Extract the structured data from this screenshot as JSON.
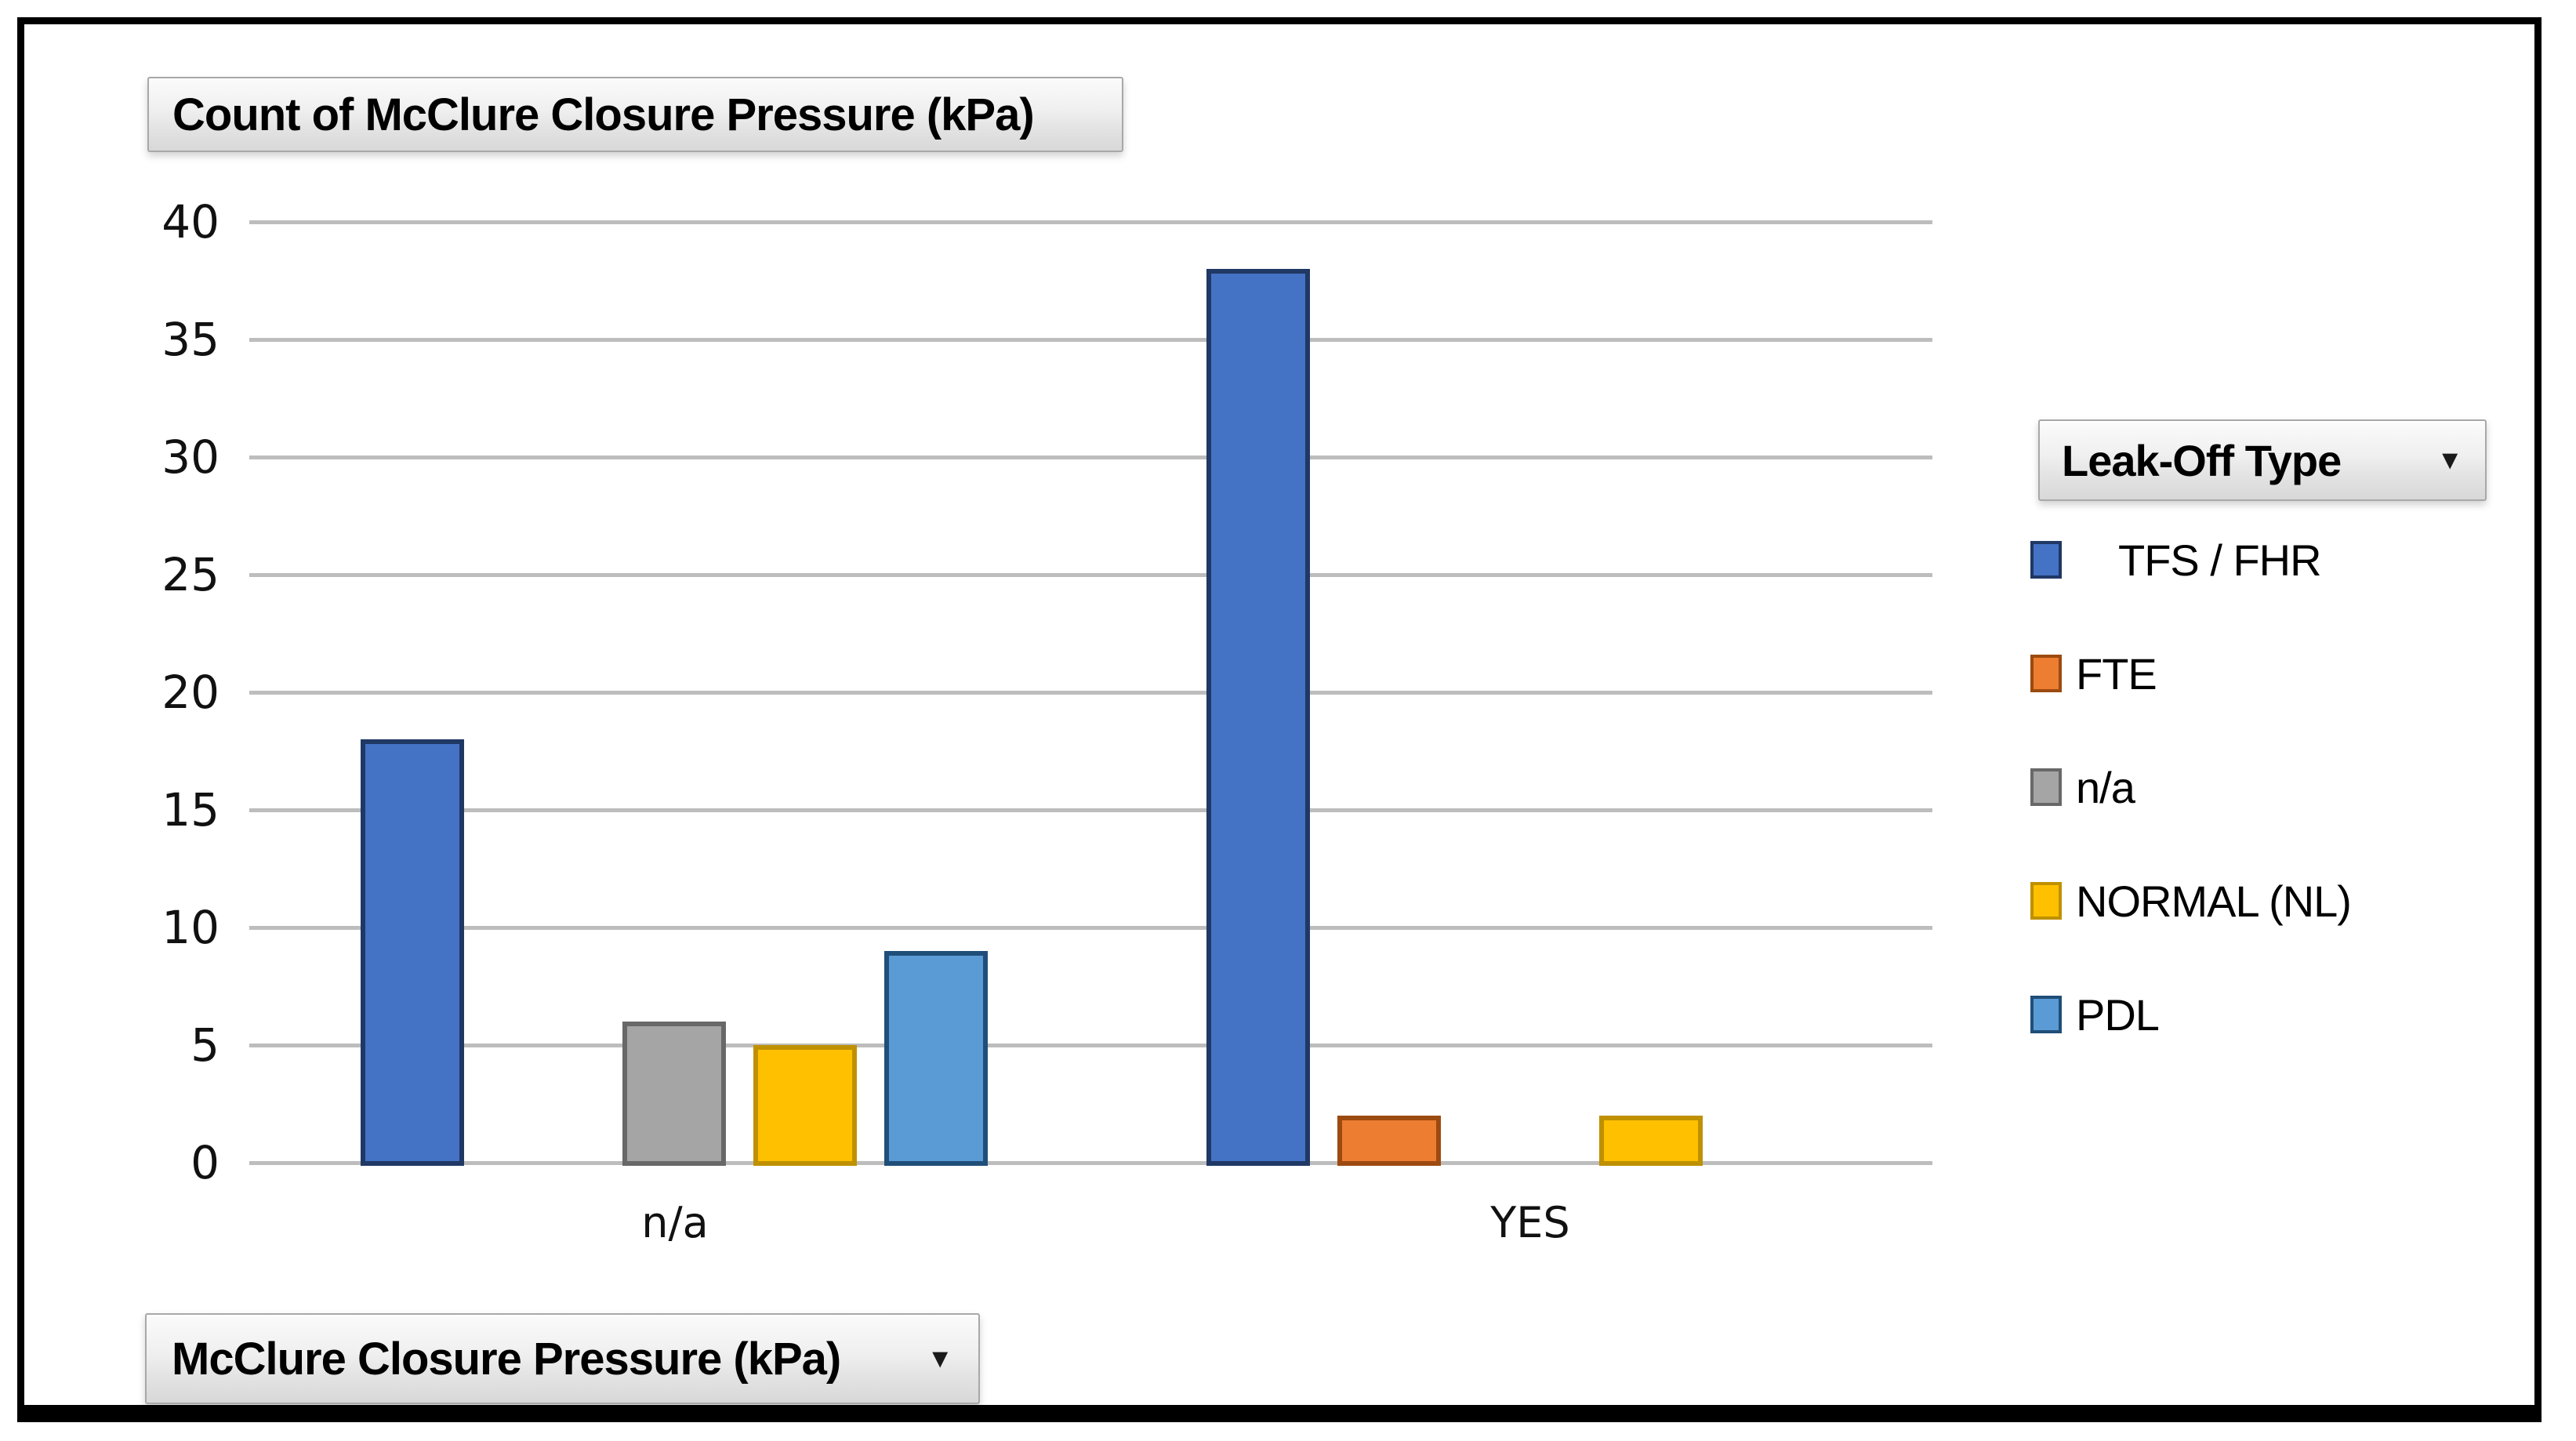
{
  "ui": {
    "dropdown_glyph": "▼"
  },
  "chart_data": {
    "type": "bar",
    "title": "Count of McClure Closure Pressure (kPa)",
    "x_field": "McClure Closure Pressure (kPa)",
    "legend_title": "Leak-Off Type",
    "categories": [
      "n/a",
      "YES"
    ],
    "series": [
      {
        "name": "TFS / FHR",
        "color": "#4472C4",
        "border_color": "#1F3864",
        "values": [
          18,
          38
        ]
      },
      {
        "name": "FTE",
        "color": "#ED7D31",
        "border_color": "#9C4A10",
        "values": [
          0,
          2
        ]
      },
      {
        "name": "n/a",
        "color": "#A5A5A5",
        "border_color": "#686868",
        "values": [
          6,
          0
        ]
      },
      {
        "name": "NORMAL (NL)",
        "color": "#FFC000",
        "border_color": "#BF9000",
        "values": [
          5,
          2
        ]
      },
      {
        "name": "PDL",
        "color": "#5B9BD5",
        "border_color": "#1F4E79",
        "values": [
          9,
          0
        ]
      }
    ],
    "ylim": [
      0,
      40
    ],
    "ytick_step": 5,
    "yticks": [
      0,
      5,
      10,
      15,
      20,
      25,
      30,
      35,
      40
    ],
    "grid": true,
    "gridline_color": "#BDBDBD",
    "legend_position": "right"
  }
}
